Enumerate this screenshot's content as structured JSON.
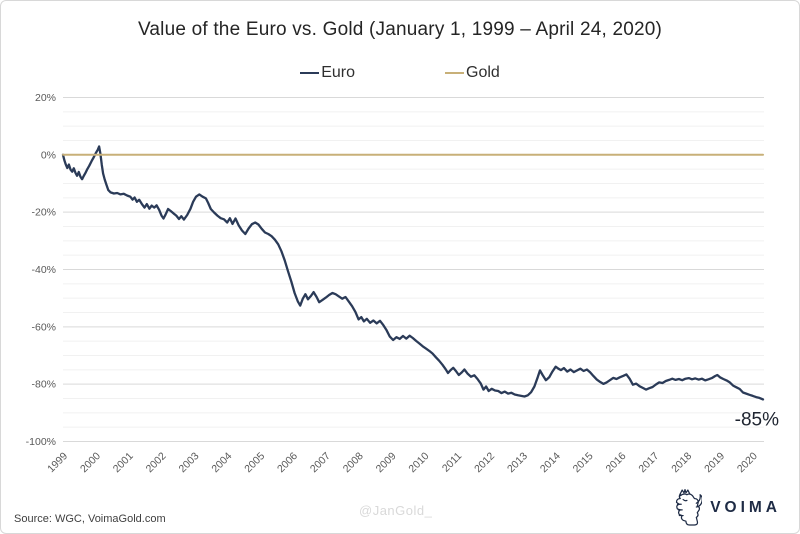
{
  "title": "Value of the Euro vs. Gold (January 1, 1999 – April 24, 2020)",
  "legend": [
    {
      "label": "Euro",
      "color": "#2B3B58"
    },
    {
      "label": "Gold",
      "color": "#C8B078"
    }
  ],
  "annotation": {
    "text": "-85%"
  },
  "footer": {
    "source": "Source: WGC, VoimaGold.com",
    "watermark": "@JanGold_",
    "logo_text": "VOIMA",
    "logo_icon": "voima-lion-crest-icon"
  },
  "colors": {
    "euro_line": "#2B3B58",
    "gold_line": "#C8B078",
    "grid_major": "#d9d9d9",
    "grid_minor": "#f1f1f1",
    "tick_label": "#595959",
    "annotation": "#1E2430",
    "title": "#252525",
    "watermark": "#d9d9d9",
    "source_text": "#3f3f3f",
    "logo_navy": "#1E2B45"
  },
  "chart_data": {
    "type": "line",
    "title": "Value of the Euro vs. Gold (January 1, 1999 – April 24, 2020)",
    "xlabel": "",
    "ylabel": "",
    "xlim": [
      1999,
      2020.31
    ],
    "ylim": [
      -100,
      20
    ],
    "x_ticks": [
      "1999",
      "2000",
      "2001",
      "2002",
      "2003",
      "2004",
      "2005",
      "2006",
      "2007",
      "2008",
      "2009",
      "2010",
      "2011",
      "2012",
      "2013",
      "2014",
      "2015",
      "2016",
      "2017",
      "2018",
      "2019",
      "2020"
    ],
    "y_ticks": [
      "20%",
      "0%",
      "-20%",
      "-40%",
      "-60%",
      "-80%",
      "-100%"
    ],
    "grid": "horizontal major every 20%, faint minor every 5%, no vertical gridlines",
    "legend_position": "top",
    "legend_entries": [
      "Euro",
      "Gold"
    ],
    "annotations": [
      {
        "text": "-85%",
        "x": 2020.31,
        "y": -85.3
      }
    ],
    "series": [
      {
        "name": "Euro",
        "color": "#2B3B58",
        "points": [
          [
            1999.0,
            0
          ],
          [
            1999.04,
            -1.8
          ],
          [
            1999.08,
            -3.2
          ],
          [
            1999.13,
            -4.6
          ],
          [
            1999.18,
            -3.4
          ],
          [
            1999.23,
            -5.2
          ],
          [
            1999.28,
            -5.9
          ],
          [
            1999.33,
            -4.7
          ],
          [
            1999.38,
            -6.3
          ],
          [
            1999.43,
            -7.3
          ],
          [
            1999.48,
            -6.0
          ],
          [
            1999.53,
            -7.6
          ],
          [
            1999.58,
            -8.5
          ],
          [
            1999.63,
            -7.4
          ],
          [
            1999.68,
            -6.4
          ],
          [
            1999.73,
            -5.2
          ],
          [
            1999.8,
            -3.8
          ],
          [
            1999.87,
            -2.2
          ],
          [
            1999.93,
            -1.0
          ],
          [
            2000.0,
            0.6
          ],
          [
            2000.06,
            1.8
          ],
          [
            2000.1,
            2.9
          ],
          [
            2000.14,
            0.4
          ],
          [
            2000.18,
            -3.5
          ],
          [
            2000.22,
            -6.5
          ],
          [
            2000.27,
            -8.6
          ],
          [
            2000.32,
            -10.4
          ],
          [
            2000.38,
            -12.3
          ],
          [
            2000.45,
            -13.1
          ],
          [
            2000.55,
            -13.5
          ],
          [
            2000.65,
            -13.3
          ],
          [
            2000.75,
            -13.8
          ],
          [
            2000.85,
            -13.6
          ],
          [
            2000.95,
            -14.2
          ],
          [
            2001.05,
            -14.6
          ],
          [
            2001.12,
            -15.6
          ],
          [
            2001.18,
            -14.9
          ],
          [
            2001.25,
            -16.4
          ],
          [
            2001.32,
            -15.7
          ],
          [
            2001.4,
            -17.1
          ],
          [
            2001.48,
            -18.4
          ],
          [
            2001.55,
            -17.2
          ],
          [
            2001.63,
            -18.8
          ],
          [
            2001.7,
            -17.7
          ],
          [
            2001.78,
            -18.4
          ],
          [
            2001.85,
            -17.6
          ],
          [
            2001.93,
            -19.2
          ],
          [
            2002.0,
            -21.2
          ],
          [
            2002.06,
            -22.2
          ],
          [
            2002.12,
            -20.9
          ],
          [
            2002.2,
            -18.9
          ],
          [
            2002.28,
            -19.6
          ],
          [
            2002.36,
            -20.4
          ],
          [
            2002.45,
            -21.2
          ],
          [
            2002.53,
            -22.4
          ],
          [
            2002.6,
            -21.4
          ],
          [
            2002.68,
            -22.6
          ],
          [
            2002.78,
            -21.0
          ],
          [
            2002.88,
            -18.8
          ],
          [
            2002.96,
            -16.4
          ],
          [
            2003.05,
            -14.6
          ],
          [
            2003.15,
            -13.8
          ],
          [
            2003.25,
            -14.6
          ],
          [
            2003.35,
            -15.2
          ],
          [
            2003.42,
            -16.8
          ],
          [
            2003.5,
            -18.9
          ],
          [
            2003.6,
            -20.1
          ],
          [
            2003.7,
            -21.2
          ],
          [
            2003.8,
            -22.1
          ],
          [
            2003.9,
            -22.5
          ],
          [
            2004.0,
            -23.6
          ],
          [
            2004.08,
            -22.1
          ],
          [
            2004.16,
            -24.1
          ],
          [
            2004.25,
            -22.2
          ],
          [
            2004.35,
            -24.6
          ],
          [
            2004.45,
            -26.4
          ],
          [
            2004.55,
            -27.6
          ],
          [
            2004.65,
            -25.7
          ],
          [
            2004.75,
            -24.2
          ],
          [
            2004.85,
            -23.6
          ],
          [
            2004.95,
            -24.3
          ],
          [
            2005.05,
            -25.8
          ],
          [
            2005.15,
            -27.1
          ],
          [
            2005.25,
            -27.6
          ],
          [
            2005.35,
            -28.4
          ],
          [
            2005.45,
            -29.6
          ],
          [
            2005.55,
            -31.2
          ],
          [
            2005.65,
            -33.6
          ],
          [
            2005.75,
            -36.8
          ],
          [
            2005.85,
            -40.6
          ],
          [
            2005.95,
            -44.2
          ],
          [
            2006.05,
            -48.2
          ],
          [
            2006.15,
            -51.2
          ],
          [
            2006.22,
            -52.6
          ],
          [
            2006.3,
            -50.2
          ],
          [
            2006.38,
            -48.6
          ],
          [
            2006.46,
            -50.4
          ],
          [
            2006.55,
            -49.2
          ],
          [
            2006.63,
            -47.9
          ],
          [
            2006.72,
            -49.6
          ],
          [
            2006.8,
            -51.4
          ],
          [
            2006.9,
            -50.6
          ],
          [
            2007.0,
            -49.8
          ],
          [
            2007.1,
            -48.9
          ],
          [
            2007.2,
            -48.2
          ],
          [
            2007.3,
            -48.6
          ],
          [
            2007.4,
            -49.4
          ],
          [
            2007.5,
            -50.2
          ],
          [
            2007.6,
            -49.6
          ],
          [
            2007.7,
            -51.2
          ],
          [
            2007.8,
            -52.8
          ],
          [
            2007.9,
            -54.8
          ],
          [
            2008.0,
            -57.4
          ],
          [
            2008.08,
            -56.6
          ],
          [
            2008.16,
            -58.1
          ],
          [
            2008.25,
            -57.2
          ],
          [
            2008.35,
            -58.6
          ],
          [
            2008.45,
            -57.8
          ],
          [
            2008.55,
            -58.8
          ],
          [
            2008.65,
            -57.9
          ],
          [
            2008.75,
            -59.4
          ],
          [
            2008.85,
            -61.2
          ],
          [
            2008.95,
            -63.4
          ],
          [
            2009.05,
            -64.6
          ],
          [
            2009.15,
            -63.6
          ],
          [
            2009.25,
            -64.2
          ],
          [
            2009.35,
            -63.2
          ],
          [
            2009.45,
            -64.1
          ],
          [
            2009.55,
            -63.1
          ],
          [
            2009.65,
            -63.9
          ],
          [
            2009.75,
            -64.9
          ],
          [
            2009.85,
            -65.8
          ],
          [
            2009.95,
            -66.8
          ],
          [
            2010.05,
            -67.6
          ],
          [
            2010.15,
            -68.4
          ],
          [
            2010.25,
            -69.3
          ],
          [
            2010.35,
            -70.6
          ],
          [
            2010.45,
            -71.8
          ],
          [
            2010.55,
            -73.2
          ],
          [
            2010.65,
            -74.8
          ],
          [
            2010.72,
            -76.1
          ],
          [
            2010.8,
            -75.1
          ],
          [
            2010.88,
            -74.3
          ],
          [
            2010.96,
            -75.4
          ],
          [
            2011.05,
            -76.8
          ],
          [
            2011.14,
            -75.9
          ],
          [
            2011.22,
            -74.9
          ],
          [
            2011.32,
            -76.4
          ],
          [
            2011.42,
            -77.4
          ],
          [
            2011.52,
            -76.9
          ],
          [
            2011.62,
            -78.2
          ],
          [
            2011.72,
            -79.8
          ],
          [
            2011.8,
            -81.9
          ],
          [
            2011.88,
            -80.8
          ],
          [
            2011.96,
            -82.4
          ],
          [
            2012.05,
            -81.6
          ],
          [
            2012.15,
            -82.2
          ],
          [
            2012.25,
            -82.4
          ],
          [
            2012.35,
            -83.1
          ],
          [
            2012.45,
            -82.6
          ],
          [
            2012.55,
            -83.3
          ],
          [
            2012.65,
            -83.0
          ],
          [
            2012.75,
            -83.6
          ],
          [
            2012.85,
            -83.9
          ],
          [
            2012.95,
            -84.1
          ],
          [
            2013.05,
            -84.3
          ],
          [
            2013.15,
            -83.9
          ],
          [
            2013.25,
            -82.8
          ],
          [
            2013.35,
            -80.8
          ],
          [
            2013.45,
            -77.6
          ],
          [
            2013.52,
            -75.2
          ],
          [
            2013.6,
            -76.8
          ],
          [
            2013.7,
            -78.6
          ],
          [
            2013.8,
            -77.6
          ],
          [
            2013.9,
            -75.6
          ],
          [
            2014.0,
            -73.9
          ],
          [
            2014.08,
            -74.6
          ],
          [
            2014.16,
            -75.1
          ],
          [
            2014.25,
            -74.4
          ],
          [
            2014.35,
            -75.6
          ],
          [
            2014.45,
            -74.9
          ],
          [
            2014.55,
            -75.8
          ],
          [
            2014.65,
            -75.2
          ],
          [
            2014.75,
            -74.6
          ],
          [
            2014.85,
            -75.4
          ],
          [
            2014.95,
            -74.9
          ],
          [
            2015.05,
            -75.9
          ],
          [
            2015.15,
            -77.2
          ],
          [
            2015.25,
            -78.4
          ],
          [
            2015.35,
            -79.2
          ],
          [
            2015.45,
            -79.9
          ],
          [
            2015.55,
            -79.4
          ],
          [
            2015.65,
            -78.6
          ],
          [
            2015.75,
            -77.8
          ],
          [
            2015.85,
            -78.2
          ],
          [
            2015.95,
            -77.6
          ],
          [
            2016.05,
            -77.1
          ],
          [
            2016.15,
            -76.6
          ],
          [
            2016.25,
            -78.1
          ],
          [
            2016.35,
            -80.2
          ],
          [
            2016.45,
            -79.8
          ],
          [
            2016.55,
            -80.7
          ],
          [
            2016.65,
            -81.3
          ],
          [
            2016.75,
            -81.9
          ],
          [
            2016.85,
            -81.4
          ],
          [
            2016.95,
            -81.0
          ],
          [
            2017.05,
            -80.1
          ],
          [
            2017.15,
            -79.4
          ],
          [
            2017.25,
            -79.6
          ],
          [
            2017.35,
            -78.9
          ],
          [
            2017.45,
            -78.5
          ],
          [
            2017.55,
            -78.1
          ],
          [
            2017.65,
            -78.5
          ],
          [
            2017.75,
            -78.2
          ],
          [
            2017.85,
            -78.6
          ],
          [
            2017.95,
            -78.1
          ],
          [
            2018.05,
            -77.9
          ],
          [
            2018.15,
            -78.3
          ],
          [
            2018.25,
            -78.0
          ],
          [
            2018.35,
            -78.4
          ],
          [
            2018.45,
            -78.1
          ],
          [
            2018.55,
            -78.7
          ],
          [
            2018.65,
            -78.3
          ],
          [
            2018.75,
            -77.9
          ],
          [
            2018.85,
            -77.2
          ],
          [
            2018.92,
            -76.8
          ],
          [
            2019.0,
            -77.6
          ],
          [
            2019.1,
            -78.2
          ],
          [
            2019.2,
            -78.7
          ],
          [
            2019.3,
            -79.4
          ],
          [
            2019.4,
            -80.5
          ],
          [
            2019.5,
            -81.1
          ],
          [
            2019.6,
            -81.7
          ],
          [
            2019.7,
            -82.9
          ],
          [
            2019.8,
            -83.3
          ],
          [
            2019.9,
            -83.7
          ],
          [
            2020.0,
            -84.1
          ],
          [
            2020.1,
            -84.5
          ],
          [
            2020.2,
            -84.8
          ],
          [
            2020.31,
            -85.3
          ]
        ]
      },
      {
        "name": "Gold",
        "color": "#C8B078",
        "points": [
          [
            1999.0,
            0
          ],
          [
            2020.31,
            0
          ]
        ]
      }
    ]
  }
}
